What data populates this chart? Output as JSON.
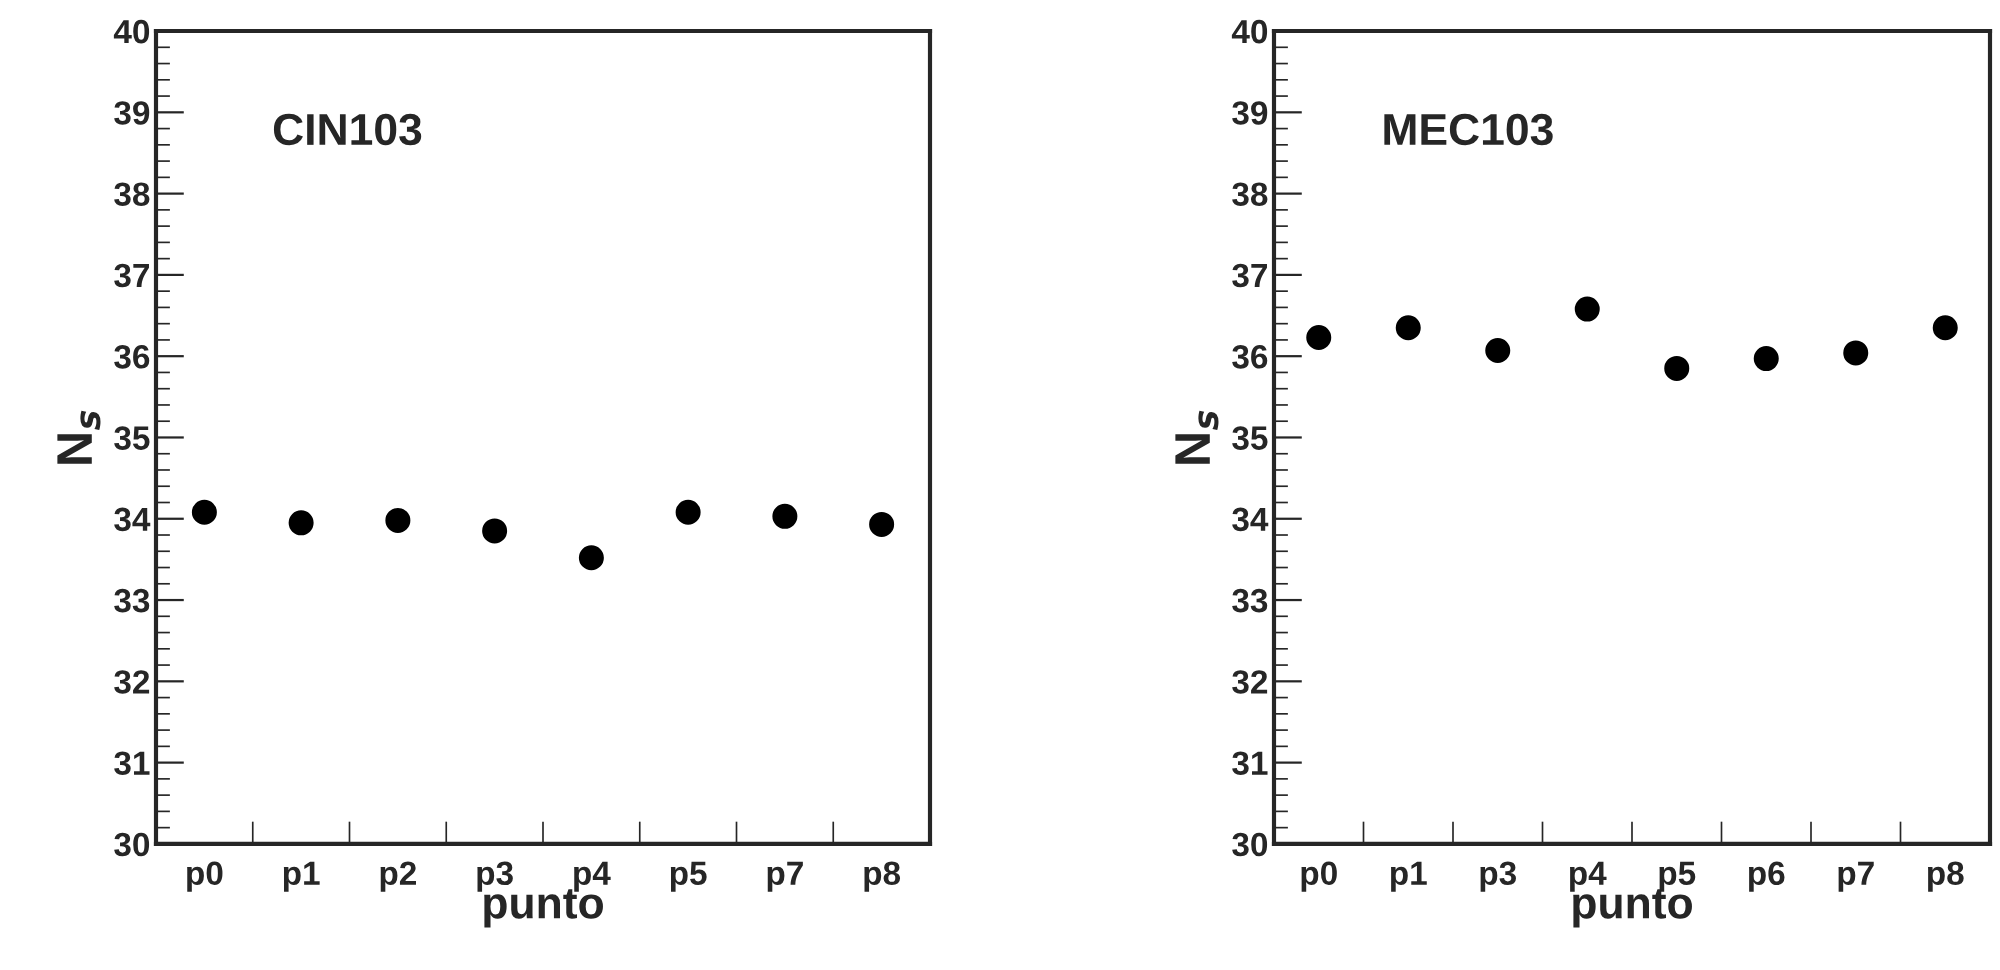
{
  "chart_data": [
    {
      "type": "scatter",
      "title": "CIN103",
      "xlabel": "punto",
      "ylabel": "N$_{s}$",
      "categories": [
        "p0",
        "p1",
        "p2",
        "p3",
        "p4",
        "p5",
        "p7",
        "p8"
      ],
      "values": [
        34.08,
        33.95,
        33.98,
        33.85,
        33.52,
        34.08,
        34.03,
        33.93
      ],
      "color": "#000000",
      "marker": "circle",
      "ylim": [
        30,
        40
      ],
      "yticks": [
        30,
        31,
        32,
        33,
        34,
        35,
        36,
        37,
        38,
        39,
        40
      ],
      "grid": false,
      "legend": false
    },
    {
      "type": "scatter",
      "title": "MEC103",
      "xlabel": "punto",
      "ylabel": "N$_{s}$",
      "categories": [
        "p0",
        "p1",
        "p3",
        "p4",
        "p5",
        "p6",
        "p7",
        "p8"
      ],
      "values": [
        36.23,
        36.35,
        36.07,
        36.58,
        35.85,
        35.97,
        36.04,
        36.35
      ],
      "color": "#000000",
      "marker": "circle",
      "ylim": [
        30,
        40
      ],
      "yticks": [
        30,
        31,
        32,
        33,
        34,
        35,
        36,
        37,
        38,
        39,
        40
      ],
      "grid": false,
      "legend": false
    }
  ]
}
